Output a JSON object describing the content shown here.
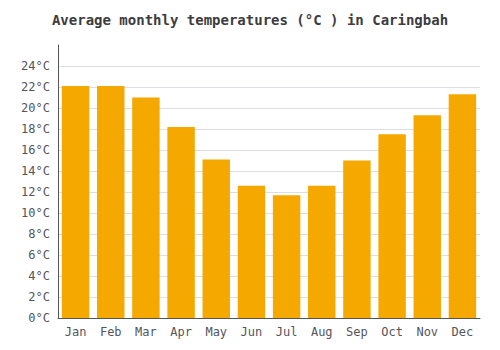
{
  "chart_data": {
    "type": "bar",
    "title": "Average monthly temperatures (°C ) in Caringbah",
    "categories": [
      "Jan",
      "Feb",
      "Mar",
      "Apr",
      "May",
      "Jun",
      "Jul",
      "Aug",
      "Sep",
      "Oct",
      "Nov",
      "Dec"
    ],
    "values": [
      22.1,
      22.1,
      21.0,
      18.2,
      15.1,
      12.6,
      11.7,
      12.6,
      15.0,
      17.5,
      19.3,
      21.3
    ],
    "color": "#F5A800",
    "ylim": [
      0,
      26
    ],
    "yticks": [
      {
        "value": 0,
        "label": "0°C"
      },
      {
        "value": 2,
        "label": "2°C"
      },
      {
        "value": 4,
        "label": "4°C"
      },
      {
        "value": 6,
        "label": "6°C"
      },
      {
        "value": 8,
        "label": "8°C"
      },
      {
        "value": 10,
        "label": "10°C"
      },
      {
        "value": 12,
        "label": "12°C"
      },
      {
        "value": 14,
        "label": "14°C"
      },
      {
        "value": 16,
        "label": "16°C"
      },
      {
        "value": 18,
        "label": "18°C"
      },
      {
        "value": 20,
        "label": "20°C"
      },
      {
        "value": 22,
        "label": "22°C"
      },
      {
        "value": 24,
        "label": "24°C"
      }
    ],
    "grid": true
  }
}
